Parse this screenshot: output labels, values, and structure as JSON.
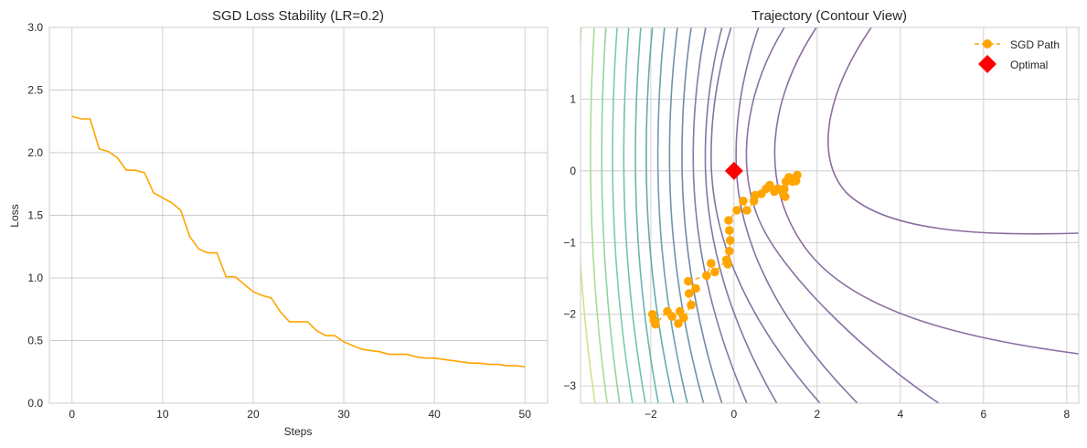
{
  "chart_data": [
    {
      "type": "line",
      "title": "SGD Loss Stability (LR=0.2)",
      "xlabel": "Steps",
      "ylabel": "Loss",
      "xlim": [
        -2.5,
        52.5
      ],
      "ylim": [
        0,
        3.0
      ],
      "xticks": [
        "0",
        "10",
        "20",
        "30",
        "40",
        "50"
      ],
      "yticks": [
        "0.0",
        "0.5",
        "1.0",
        "1.5",
        "2.0",
        "2.5",
        "3.0"
      ],
      "grid": true,
      "color": "#FFA500",
      "x": [
        0,
        1,
        2,
        3,
        4,
        5,
        6,
        7,
        8,
        9,
        10,
        11,
        12,
        13,
        14,
        15,
        16,
        17,
        18,
        19,
        20,
        21,
        22,
        23,
        24,
        25,
        26,
        27,
        28,
        29,
        30,
        31,
        32,
        33,
        34,
        35,
        36,
        37,
        38,
        39,
        40,
        41,
        42,
        43,
        44,
        45,
        46,
        47,
        48,
        49,
        50
      ],
      "y": [
        2.29,
        2.27,
        2.27,
        2.03,
        2.01,
        1.96,
        1.86,
        1.86,
        1.84,
        1.68,
        1.64,
        1.6,
        1.54,
        1.33,
        1.23,
        1.2,
        1.2,
        1.01,
        1.01,
        0.95,
        0.89,
        0.86,
        0.84,
        0.73,
        0.65,
        0.65,
        0.65,
        0.58,
        0.54,
        0.54,
        0.49,
        0.46,
        0.43,
        0.42,
        0.41,
        0.39,
        0.39,
        0.39,
        0.37,
        0.36,
        0.36,
        0.35,
        0.34,
        0.33,
        0.32,
        0.32,
        0.31,
        0.31,
        0.3,
        0.3,
        0.29
      ]
    },
    {
      "type": "scatter",
      "title": "Trajectory (Contour View)",
      "xlim": [
        -3.69,
        8.29
      ],
      "ylim": [
        -3.24,
        2.0
      ],
      "xticks": [
        "−2",
        "0",
        "2",
        "4",
        "6",
        "8"
      ],
      "yticks": [
        "1",
        "0",
        "−1",
        "−2",
        "−3"
      ],
      "grid": true,
      "legend_position": "top-right",
      "contour_colormap": "viridis",
      "series": [
        {
          "name": "SGD Path",
          "color": "#FFA500",
          "marker": "circle",
          "linestyle": "dashed",
          "x": [
            -1.96,
            -1.93,
            -1.89,
            -1.6,
            -1.49,
            -1.34,
            -1.3,
            -1.21,
            -1.03,
            -1.08,
            -0.92,
            -1.1,
            -0.66,
            -0.55,
            -0.46,
            -0.18,
            -0.15,
            -0.11,
            -0.09,
            -0.11,
            -0.13,
            0.07,
            0.22,
            0.31,
            0.48,
            0.51,
            0.66,
            0.77,
            0.86,
            0.97,
            1.05,
            1.23,
            1.19,
            1.21,
            1.25,
            1.32,
            1.41,
            1.45,
            1.49,
            1.52
          ],
          "y": [
            -2.0,
            -2.08,
            -2.14,
            -1.96,
            -2.03,
            -2.13,
            -1.96,
            -2.05,
            -1.87,
            -1.71,
            -1.64,
            -1.54,
            -1.46,
            -1.29,
            -1.41,
            -1.24,
            -1.3,
            -1.12,
            -0.97,
            -0.83,
            -0.69,
            -0.55,
            -0.42,
            -0.55,
            -0.42,
            -0.34,
            -0.32,
            -0.25,
            -0.2,
            -0.29,
            -0.25,
            -0.36,
            -0.33,
            -0.25,
            -0.15,
            -0.09,
            -0.15,
            -0.14,
            -0.14,
            -0.06
          ]
        },
        {
          "name": "Optimal",
          "color": "#FF0000",
          "marker": "diamond",
          "x": [
            0
          ],
          "y": [
            0
          ]
        }
      ]
    }
  ]
}
